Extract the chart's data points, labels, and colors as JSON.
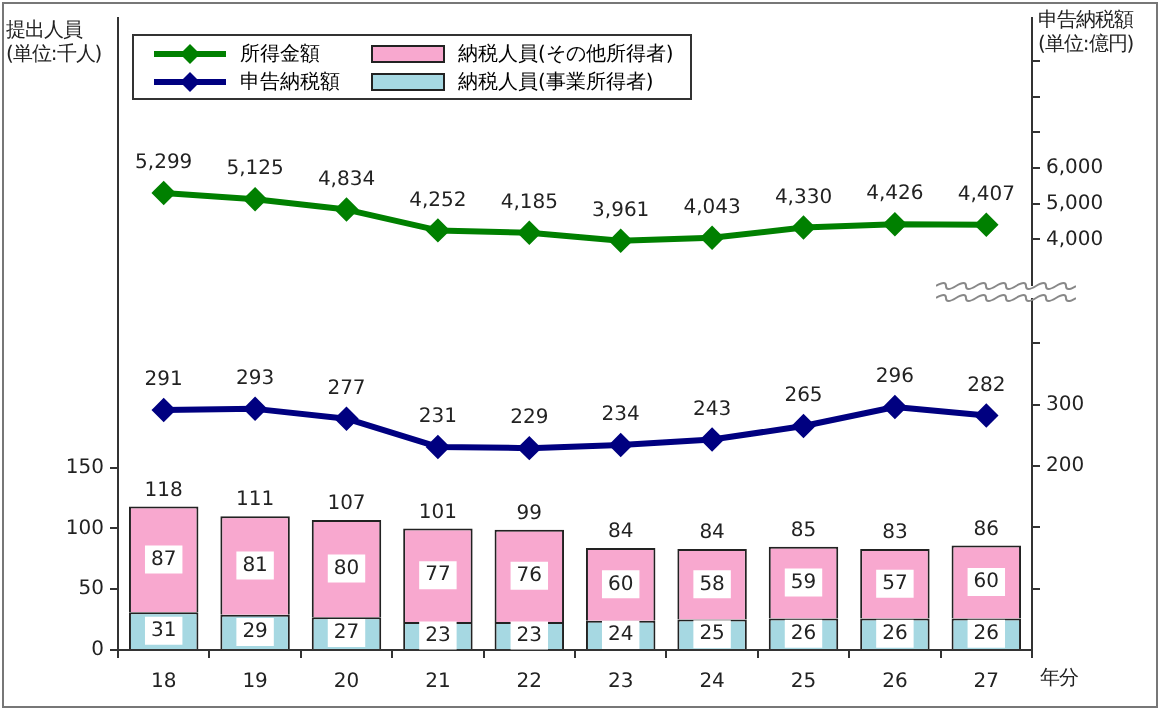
{
  "chart_data": {
    "type": "bar",
    "stacked": true,
    "categories": [
      "18",
      "19",
      "20",
      "21",
      "22",
      "23",
      "24",
      "25",
      "26",
      "27"
    ],
    "xlabel": "年分",
    "ylabel": "提出人員\n(単位:千人)",
    "y2label": "申告納税額\n(単位:億円)",
    "ylim": [
      0,
      520
    ],
    "yticks": [
      0,
      50,
      100,
      150
    ],
    "y2lim": [
      -100,
      930
    ],
    "y2ticks": [
      {
        "value": 0,
        "label": null
      },
      {
        "value": 100,
        "label": null
      },
      200,
      300,
      {
        "value": 400,
        "label": null
      }
    ],
    "y3lim": [
      -7500,
      10200
    ],
    "y3ticks": [
      {
        "value": 4000,
        "label": "4,000"
      },
      {
        "value": 5000,
        "label": "5,000"
      },
      {
        "value": 6000,
        "label": "6,000"
      },
      {
        "value": 7000,
        "label": null
      },
      {
        "value": 8000,
        "label": null
      },
      {
        "value": 9000,
        "label": null
      }
    ],
    "series": [
      {
        "name": "納税人員(事業所得者)",
        "color": "#a6d8e2",
        "values": [
          31,
          29,
          27,
          23,
          23,
          24,
          25,
          26,
          26,
          26
        ]
      },
      {
        "name": "納税人員(その他所得者)",
        "color": "#f8a8cf",
        "values": [
          87,
          81,
          80,
          77,
          76,
          60,
          58,
          59,
          57,
          60
        ]
      },
      {
        "name": "所得金額",
        "type": "line",
        "axis": "y3",
        "color": "#008000",
        "values": [
          5299,
          5125,
          4834,
          4252,
          4185,
          3961,
          4043,
          4330,
          4426,
          4407
        ],
        "value_labels": [
          "5,299",
          "5,125",
          "4,834",
          "4,252",
          "4,185",
          "3,961",
          "4,043",
          "4,330",
          "4,426",
          "4,407"
        ]
      },
      {
        "name": "申告納税額",
        "type": "line",
        "axis": "y2",
        "color": "#000080",
        "values": [
          291,
          293,
          277,
          231,
          229,
          234,
          243,
          265,
          296,
          282
        ]
      }
    ],
    "totals": [
      "118",
      "111",
      "107",
      "101",
      "99",
      "84",
      "84",
      "85",
      "83",
      "86"
    ],
    "data_labels": true,
    "legend": "top left",
    "grid": false,
    "marker": "diamond",
    "line_style": "solid"
  }
}
